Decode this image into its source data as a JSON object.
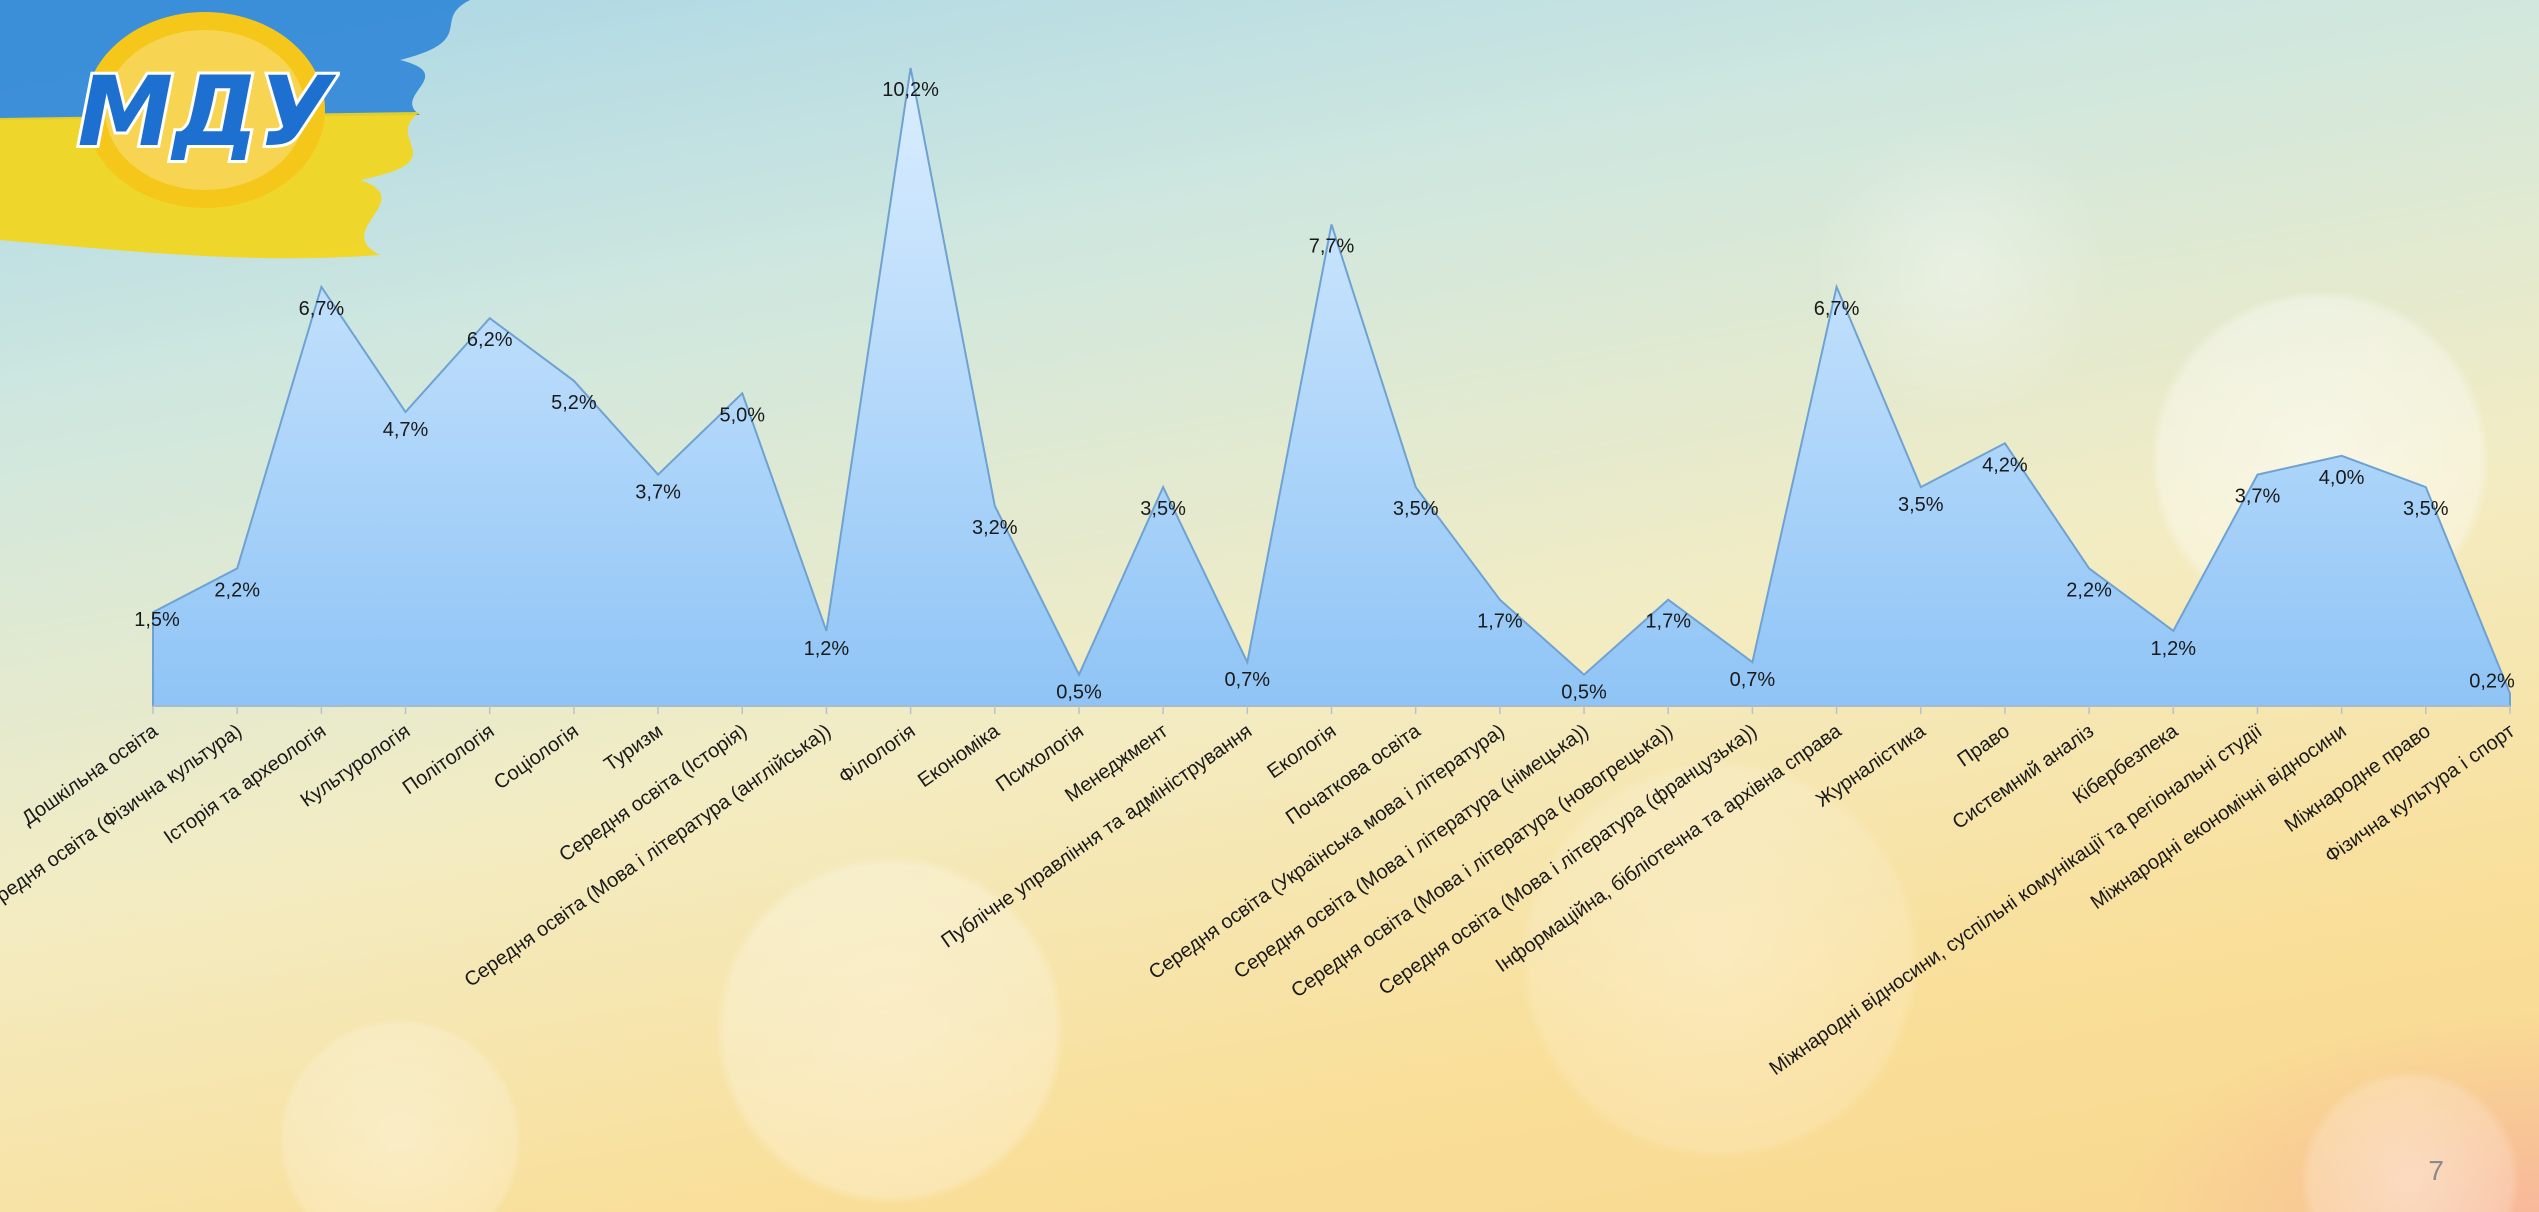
{
  "logo_text": "МДУ",
  "page_number": "7",
  "colors": {
    "area_top": "#dbeeff",
    "area_bottom": "#8fc4f6",
    "area_line": "#6ea2d2",
    "axis": "#b8c2cc",
    "flag_blue": "#2a7fd0",
    "flag_yellow": "#f5d60a"
  },
  "chart_data": {
    "type": "area",
    "title": "",
    "xlabel": "",
    "ylabel": "",
    "ylim": [
      0,
      11
    ],
    "grid": false,
    "legend": "none",
    "categories": [
      "Дошкільна освіта",
      "Середня освіта (Фізична культура)",
      "Історія та археологія",
      "Культурологія",
      "Політологія",
      "Соціологія",
      "Туризм",
      "Середня освіта (Історія)",
      "Середня освіта (Мова і література (англійська))",
      "Філологія",
      "Економіка",
      "Психологія",
      "Менеджмент",
      "Публічне управління та адміністрування",
      "Екологія",
      "Початкова освіта",
      "Середня освіта (Українська мова і література)",
      "Середня освіта (Мова і література (німецька))",
      "Середня освіта (Мова і література (новогрецька))",
      "Середня освіта (Мова і література (французька))",
      "Інформаційна, бібліотечна та архівна справа",
      "Журналістика",
      "Право",
      "Системний аналіз",
      "Кібербезпека",
      "Міжнародні відносини, суспільні комунікації та регіональні студії",
      "Міжнародні економічні відносини",
      "Міжнародне право",
      "Фізична культура і спорт"
    ],
    "values": [
      1.5,
      2.2,
      6.7,
      4.7,
      6.2,
      5.2,
      3.7,
      5.0,
      1.2,
      10.2,
      3.2,
      0.5,
      3.5,
      0.7,
      7.7,
      3.5,
      1.7,
      0.5,
      1.7,
      0.7,
      6.7,
      3.5,
      4.2,
      2.2,
      1.2,
      3.7,
      4.0,
      3.5,
      0.2
    ],
    "value_labels": [
      "1,5%",
      "2,2%",
      "6,7%",
      "4,7%",
      "6,2%",
      "5,2%",
      "3,7%",
      "5,0%",
      "1,2%",
      "10,2%",
      "3,2%",
      "0,5%",
      "3,5%",
      "0,7%",
      "7,7%",
      "3,5%",
      "1,7%",
      "0,5%",
      "1,7%",
      "0,7%",
      "6,7%",
      "3,5%",
      "4,2%",
      "2,2%",
      "1,2%",
      "3,7%",
      "4,0%",
      "3,5%",
      "0,2%"
    ]
  }
}
